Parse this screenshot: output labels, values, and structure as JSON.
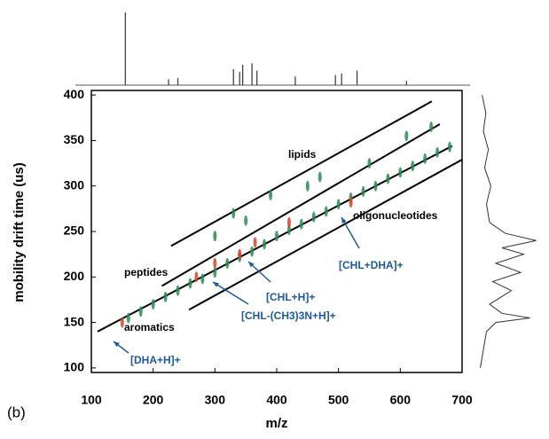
{
  "chart_data": {
    "type": "scatter",
    "xlabel": "m/z",
    "ylabel": "mobility drift time (us)",
    "panel_label": "(b)",
    "xlim": [
      100,
      700
    ],
    "ylim": [
      95,
      405
    ],
    "xticks": [
      100,
      200,
      300,
      400,
      500,
      600,
      700
    ],
    "yticks": [
      100,
      150,
      200,
      250,
      300,
      350,
      400
    ],
    "series": [
      {
        "color": "#2e8b57",
        "x": [
          160,
          180,
          200,
          220,
          240,
          260,
          280,
          300,
          320,
          340,
          360,
          380,
          400,
          420,
          440,
          460,
          480,
          500,
          520,
          540,
          560,
          580,
          600,
          620,
          640,
          660,
          680,
          300,
          350,
          450,
          550,
          650,
          330,
          390,
          470,
          610
        ],
        "y": [
          155,
          162,
          170,
          178,
          185,
          193,
          198,
          205,
          215,
          222,
          228,
          236,
          245,
          252,
          258,
          266,
          272,
          280,
          287,
          294,
          300,
          308,
          315,
          322,
          330,
          337,
          343,
          245,
          262,
          300,
          325,
          365,
          270,
          290,
          310,
          355
        ]
      },
      {
        "color": "#d2452e",
        "x": [
          150,
          270,
          300,
          340,
          365,
          420,
          520
        ],
        "y": [
          150,
          200,
          215,
          225,
          238,
          260,
          282
        ]
      }
    ],
    "trend_lines": [
      {
        "x": [
          229,
          651
        ],
        "y": [
          234,
          393
        ]
      },
      {
        "x": [
          214,
          664
        ],
        "y": [
          190,
          368
        ]
      },
      {
        "x": [
          110,
          684
        ],
        "y": [
          140,
          344
        ]
      },
      {
        "x": [
          258,
          700
        ],
        "y": [
          164,
          329
        ]
      }
    ],
    "top_spectrum": {
      "x": [
        155,
        225,
        240,
        330,
        340,
        345,
        360,
        368,
        430,
        495,
        505,
        530,
        610
      ],
      "intensity": [
        100,
        8,
        10,
        22,
        18,
        28,
        30,
        20,
        12,
        14,
        16,
        20,
        6
      ]
    },
    "side_profile": {
      "y": [
        100,
        120,
        140,
        150,
        155,
        160,
        170,
        185,
        195,
        205,
        215,
        225,
        232,
        240,
        248,
        260,
        280,
        300,
        320,
        340,
        360,
        380,
        400
      ],
      "intensity": [
        5,
        10,
        15,
        30,
        85,
        40,
        20,
        55,
        25,
        70,
        30,
        75,
        40,
        95,
        45,
        20,
        15,
        22,
        12,
        18,
        10,
        14,
        8
      ]
    },
    "annotations": [
      "lipids",
      "peptides",
      "aromatics",
      "oligonucleotides",
      "[CHL+DHA]+",
      "[CHL+H]+",
      "[CHL-(CH3)3N+H]+",
      "[DHA+H]+"
    ]
  }
}
